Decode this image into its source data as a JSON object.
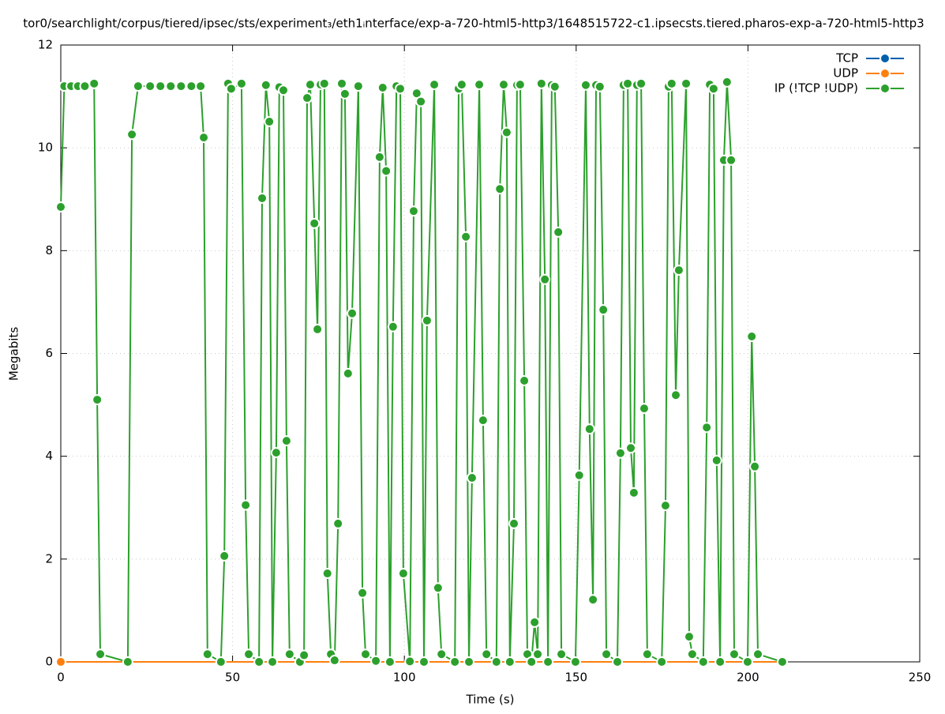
{
  "chart_data": {
    "type": "line",
    "title": "tor0/searchlight/corpus/tiered/ipsec/sts/experiment₃/eth1ᵢnterface/exp-a-720-html5-http3/1648515722-c1.ipsecsts.tiered.pharos-exp-a-720-html5-http3",
    "x_label": "Time (s)",
    "y_label": "Megabits",
    "xlim": [
      0,
      250
    ],
    "xticks": [
      0,
      50,
      100,
      150,
      200,
      250
    ],
    "ylim": [
      0,
      12
    ],
    "yticks": [
      0,
      2,
      4,
      6,
      8,
      10,
      12
    ],
    "grid": true,
    "legend": "top-right",
    "series": [
      {
        "name": "TCP",
        "color": "#0060ad",
        "x": [
          0,
          210
        ],
        "values": [
          0,
          0
        ]
      },
      {
        "name": "UDP",
        "color": "#ff7f0e",
        "x": [
          0,
          210
        ],
        "values": [
          0,
          0
        ]
      },
      {
        "name": "IP (!TCP  !UDP)",
        "color": "#2ca02c",
        "x": [
          0,
          1,
          3,
          5,
          7,
          9.7,
          10.6,
          11.5,
          19.5,
          20.7,
          22.5,
          26,
          29,
          32,
          35,
          38,
          40.7,
          41.6,
          42.7,
          46.6,
          47.6,
          48.7,
          49.6,
          52.6,
          53.8,
          54.7,
          57.7,
          58.6,
          59.7,
          60.7,
          61.6,
          62.7,
          63.6,
          64.8,
          65.7,
          66.6,
          69.6,
          70.8,
          71.7,
          72.6,
          73.8,
          74.7,
          75.6,
          76.7,
          77.6,
          78.6,
          79.7,
          80.7,
          81.8,
          82.7,
          83.6,
          84.8,
          86.6,
          87.8,
          88.7,
          91.7,
          92.8,
          93.7,
          94.7,
          95.8,
          96.7,
          97.7,
          98.8,
          99.7,
          101.6,
          102.7,
          103.6,
          104.8,
          105.7,
          106.6,
          108.7,
          109.8,
          110.8,
          114.7,
          115.8,
          116.7,
          117.9,
          118.8,
          119.7,
          121.8,
          122.9,
          123.9,
          126.8,
          127.8,
          128.9,
          129.8,
          130.7,
          131.9,
          132.8,
          133.7,
          134.9,
          135.8,
          137,
          137.9,
          138.8,
          139.9,
          140.9,
          141.8,
          142.9,
          143.8,
          144.8,
          145.7,
          149.8,
          150.9,
          152.8,
          153.9,
          154.9,
          155.8,
          156.9,
          157.9,
          158.8,
          162,
          162.9,
          163.8,
          165,
          165.9,
          166.8,
          167.7,
          168.9,
          169.8,
          170.7,
          174.9,
          176,
          176.9,
          177.8,
          179,
          179.9,
          182,
          182.9,
          183.8,
          187,
          188,
          188.9,
          190,
          190.9,
          191.9,
          193,
          193.9,
          195.1,
          196,
          199.9,
          201.1,
          202,
          202.9,
          210
        ],
        "values": [
          8.85,
          11.2,
          11.2,
          11.2,
          11.2,
          11.25,
          5.1,
          0.15,
          0,
          10.26,
          11.2,
          11.2,
          11.2,
          11.2,
          11.2,
          11.2,
          11.2,
          10.2,
          0.15,
          0,
          2.06,
          11.25,
          11.15,
          11.25,
          3.05,
          0.15,
          0,
          9.02,
          11.22,
          10.51,
          0,
          4.07,
          11.18,
          11.12,
          4.3,
          0.15,
          0,
          0.13,
          10.97,
          11.23,
          8.53,
          6.47,
          11.23,
          11.25,
          1.72,
          0.15,
          0.03,
          2.69,
          11.25,
          11.05,
          5.61,
          6.78,
          11.2,
          1.34,
          0.15,
          0.02,
          9.82,
          11.17,
          9.55,
          0,
          6.52,
          11.2,
          11.15,
          1.72,
          0.01,
          8.77,
          11.06,
          10.9,
          0,
          6.64,
          11.23,
          1.44,
          0.15,
          0,
          11.15,
          11.23,
          8.27,
          0,
          3.58,
          11.23,
          4.7,
          0.15,
          0,
          9.2,
          11.23,
          10.3,
          0,
          2.69,
          11.22,
          11.23,
          5.47,
          0.15,
          0,
          0.77,
          0.15,
          11.25,
          7.44,
          0,
          11.22,
          11.19,
          8.36,
          0.15,
          0,
          3.63,
          11.22,
          4.53,
          1.21,
          11.22,
          11.19,
          6.85,
          0.15,
          0,
          4.06,
          11.22,
          11.25,
          4.16,
          3.29,
          11.22,
          11.25,
          4.93,
          0.15,
          0,
          3.04,
          11.19,
          11.25,
          5.19,
          7.62,
          11.25,
          0.49,
          0.15,
          0,
          4.56,
          11.23,
          11.15,
          3.92,
          0,
          9.76,
          11.28,
          9.76,
          0.15,
          0,
          6.33,
          3.8,
          0.15,
          0
        ]
      }
    ]
  }
}
